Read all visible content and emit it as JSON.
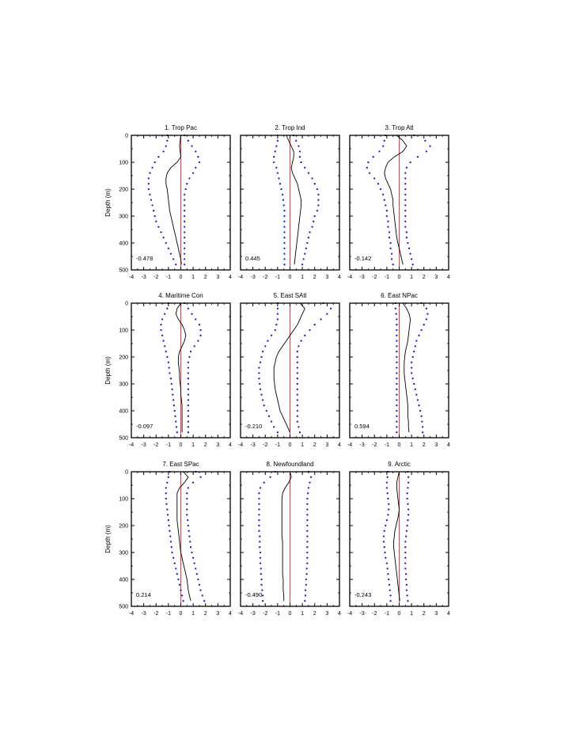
{
  "figure": {
    "ylabel": "Depth (m)",
    "xticks": [
      "-4",
      "-3",
      "-2",
      "-1",
      "0",
      "1",
      "2",
      "3",
      "4"
    ],
    "yticks": [
      "0",
      "100",
      "200",
      "300",
      "400",
      "500"
    ],
    "colors": {
      "profile": "#000000",
      "bounds": "#1a1adf",
      "zero_line": "#ff2020"
    }
  },
  "chart_data": [
    {
      "type": "line",
      "title": "1. Trop Pac",
      "corr": "-0.478",
      "xlim": [
        -4,
        4
      ],
      "ylim": [
        0,
        500
      ],
      "ylabel": "Depth (m)",
      "depth": [
        0,
        20,
        40,
        60,
        80,
        100,
        120,
        140,
        160,
        180,
        200,
        220,
        240,
        260,
        280,
        300,
        320,
        340,
        360,
        380,
        400,
        420,
        440,
        460,
        480
      ],
      "series": [
        {
          "role": "mean",
          "values": [
            0.0,
            -0.05,
            -0.1,
            -0.05,
            0.0,
            -0.3,
            -0.8,
            -1.1,
            -1.2,
            -1.2,
            -1.1,
            -1.05,
            -1.0,
            -0.95,
            -0.9,
            -0.8,
            -0.7,
            -0.6,
            -0.5,
            -0.4,
            -0.3,
            -0.2,
            -0.1,
            0.0,
            0.05
          ]
        },
        {
          "role": "lower",
          "values": [
            -1.1,
            -1.1,
            -1.2,
            -1.4,
            -1.8,
            -2.1,
            -2.3,
            -2.5,
            -2.6,
            -2.6,
            -2.6,
            -2.5,
            -2.4,
            -2.3,
            -2.2,
            -2.1,
            -2.0,
            -1.8,
            -1.6,
            -1.4,
            -1.2,
            -1.0,
            -0.8,
            -0.6,
            -0.4
          ]
        },
        {
          "role": "upper",
          "values": [
            0.3,
            0.6,
            0.9,
            1.2,
            1.4,
            1.5,
            1.2,
            1.0,
            0.7,
            0.5,
            0.4,
            0.3,
            0.3,
            0.3,
            0.3,
            0.3,
            0.3,
            0.3,
            0.3,
            0.3,
            0.3,
            0.3,
            0.3,
            0.3,
            0.3
          ]
        }
      ]
    },
    {
      "type": "line",
      "title": "2. Trop Ind",
      "corr": "0.445",
      "xlim": [
        -4,
        4
      ],
      "ylim": [
        0,
        500
      ],
      "depth": [
        0,
        20,
        40,
        60,
        80,
        100,
        120,
        140,
        160,
        180,
        200,
        220,
        240,
        260,
        280,
        300,
        320,
        340,
        360,
        380,
        400,
        420,
        440,
        460,
        480
      ],
      "series": [
        {
          "role": "mean",
          "values": [
            -0.3,
            -0.1,
            0.1,
            0.3,
            0.3,
            0.2,
            0.1,
            0.2,
            0.4,
            0.6,
            0.7,
            0.8,
            0.9,
            0.9,
            0.85,
            0.8,
            0.75,
            0.7,
            0.65,
            0.6,
            0.55,
            0.5,
            0.45,
            0.4,
            0.35
          ]
        },
        {
          "role": "lower",
          "values": [
            -1.0,
            -1.0,
            -1.1,
            -1.2,
            -1.3,
            -1.3,
            -1.1,
            -1.0,
            -0.9,
            -0.8,
            -0.7,
            -0.6,
            -0.55,
            -0.5,
            -0.45,
            -0.45,
            -0.45,
            -0.45,
            -0.45,
            -0.45,
            -0.45,
            -0.45,
            -0.45,
            -0.45,
            -0.45
          ]
        },
        {
          "role": "upper",
          "values": [
            0.3,
            0.5,
            0.7,
            0.8,
            0.8,
            0.9,
            1.2,
            1.5,
            1.8,
            2.0,
            2.2,
            2.3,
            2.3,
            2.3,
            2.2,
            2.0,
            1.9,
            1.8,
            1.6,
            1.5,
            1.4,
            1.3,
            1.2,
            1.1,
            1.0
          ]
        }
      ]
    },
    {
      "type": "line",
      "title": "3. Trop Atl",
      "corr": "-0.142",
      "xlim": [
        -4,
        4
      ],
      "ylim": [
        0,
        500
      ],
      "depth": [
        0,
        20,
        40,
        60,
        80,
        100,
        120,
        140,
        160,
        180,
        200,
        220,
        240,
        260,
        280,
        300,
        320,
        340,
        360,
        380,
        400,
        420,
        440,
        460,
        480
      ],
      "series": [
        {
          "role": "mean",
          "values": [
            -0.2,
            0.3,
            0.6,
            0.3,
            -0.4,
            -0.9,
            -1.1,
            -1.2,
            -1.1,
            -0.9,
            -0.7,
            -0.6,
            -0.5,
            -0.5,
            -0.45,
            -0.4,
            -0.35,
            -0.3,
            -0.25,
            -0.2,
            -0.1,
            0.0,
            0.1,
            0.2,
            0.3
          ]
        },
        {
          "role": "lower",
          "values": [
            -1.1,
            -1.2,
            -1.3,
            -1.6,
            -2.1,
            -2.5,
            -2.6,
            -2.4,
            -2.0,
            -1.7,
            -1.5,
            -1.3,
            -1.2,
            -1.1,
            -1.0,
            -1.0,
            -0.9,
            -0.9,
            -0.8,
            -0.8,
            -0.7,
            -0.7,
            -0.6,
            -0.6,
            -0.5
          ]
        },
        {
          "role": "upper",
          "values": [
            1.2,
            2.1,
            2.5,
            2.2,
            1.5,
            0.9,
            0.6,
            0.5,
            0.5,
            0.5,
            0.5,
            0.5,
            0.5,
            0.5,
            0.5,
            0.5,
            0.5,
            0.5,
            0.6,
            0.6,
            0.7,
            0.8,
            0.9,
            1.0,
            1.1
          ]
        }
      ]
    },
    {
      "type": "line",
      "title": "4. Maritime Con",
      "corr": "-0.097",
      "xlim": [
        -4,
        4
      ],
      "ylim": [
        0,
        500
      ],
      "ylabel": "Depth (m)",
      "depth": [
        0,
        20,
        40,
        60,
        80,
        100,
        120,
        140,
        160,
        180,
        200,
        220,
        240,
        260,
        280,
        300,
        320,
        340,
        360,
        380,
        400,
        420,
        440,
        460,
        480
      ],
      "series": [
        {
          "role": "mean",
          "values": [
            0.0,
            -0.3,
            -0.4,
            -0.2,
            0.1,
            0.3,
            0.4,
            0.3,
            0.1,
            -0.1,
            -0.2,
            -0.2,
            -0.15,
            -0.1,
            -0.1,
            -0.05,
            0.0,
            0.0,
            0.05,
            0.1,
            0.1,
            0.1,
            0.1,
            0.1,
            0.1
          ]
        },
        {
          "role": "lower",
          "values": [
            -1.0,
            -1.1,
            -1.3,
            -1.5,
            -1.6,
            -1.6,
            -1.5,
            -1.4,
            -1.3,
            -1.2,
            -1.1,
            -1.0,
            -0.95,
            -0.9,
            -0.8,
            -0.75,
            -0.7,
            -0.65,
            -0.6,
            -0.55,
            -0.5,
            -0.45,
            -0.4,
            -0.35,
            -0.3
          ]
        },
        {
          "role": "upper",
          "values": [
            0.3,
            0.6,
            0.9,
            1.2,
            1.5,
            1.6,
            1.6,
            1.4,
            1.1,
            0.8,
            0.7,
            0.6,
            0.6,
            0.6,
            0.6,
            0.6,
            0.6,
            0.6,
            0.6,
            0.6,
            0.6,
            0.6,
            0.6,
            0.6,
            0.6
          ]
        }
      ]
    },
    {
      "type": "line",
      "title": "5. East SAtl",
      "corr": "-0.210",
      "xlim": [
        -4,
        4
      ],
      "ylim": [
        0,
        500
      ],
      "depth": [
        0,
        20,
        40,
        60,
        80,
        100,
        120,
        140,
        160,
        180,
        200,
        220,
        240,
        260,
        280,
        300,
        320,
        340,
        360,
        380,
        400,
        420,
        440,
        460,
        480
      ],
      "series": [
        {
          "role": "mean",
          "values": [
            0.8,
            1.2,
            1.0,
            0.8,
            0.6,
            0.3,
            0.0,
            -0.3,
            -0.6,
            -0.9,
            -1.1,
            -1.2,
            -1.3,
            -1.3,
            -1.3,
            -1.25,
            -1.2,
            -1.1,
            -1.0,
            -0.9,
            -0.8,
            -0.6,
            -0.4,
            -0.2,
            0.0
          ]
        },
        {
          "role": "lower",
          "values": [
            -1.0,
            -1.0,
            -1.0,
            -1.0,
            -1.1,
            -1.2,
            -1.5,
            -1.8,
            -2.0,
            -2.2,
            -2.3,
            -2.4,
            -2.5,
            -2.5,
            -2.5,
            -2.45,
            -2.4,
            -2.3,
            -2.2,
            -2.1,
            -1.9,
            -1.7,
            -1.5,
            -1.3,
            -1.0
          ]
        },
        {
          "role": "upper",
          "values": [
            2.7,
            3.3,
            3.0,
            2.5,
            2.0,
            1.6,
            1.2,
            0.9,
            0.7,
            0.6,
            0.6,
            0.6,
            0.6,
            0.6,
            0.6,
            0.6,
            0.6,
            0.6,
            0.6,
            0.6,
            0.6,
            0.6,
            0.6,
            0.7,
            0.8
          ]
        }
      ]
    },
    {
      "type": "line",
      "title": "6. East NPac",
      "corr": "0.594",
      "xlim": [
        -4,
        4
      ],
      "ylim": [
        0,
        500
      ],
      "depth": [
        0,
        20,
        40,
        60,
        80,
        100,
        120,
        140,
        160,
        180,
        200,
        220,
        240,
        260,
        280,
        300,
        320,
        340,
        360,
        380,
        400,
        420,
        440,
        460,
        480
      ],
      "series": [
        {
          "role": "mean",
          "values": [
            0.3,
            0.6,
            0.8,
            0.9,
            0.85,
            0.8,
            0.75,
            0.7,
            0.6,
            0.5,
            0.45,
            0.4,
            0.4,
            0.4,
            0.45,
            0.5,
            0.55,
            0.6,
            0.65,
            0.7,
            0.7,
            0.7,
            0.75,
            0.75,
            0.8
          ]
        },
        {
          "role": "lower",
          "values": [
            -0.3,
            -0.3,
            -0.25,
            -0.2,
            -0.2,
            -0.2,
            -0.2,
            -0.2,
            -0.2,
            -0.2,
            -0.2,
            -0.2,
            -0.2,
            -0.2,
            -0.2,
            -0.2,
            -0.2,
            -0.2,
            -0.2,
            -0.2,
            -0.2,
            -0.2,
            -0.2,
            -0.2,
            -0.2
          ]
        },
        {
          "role": "upper",
          "values": [
            1.8,
            2.2,
            2.3,
            2.2,
            2.0,
            1.8,
            1.6,
            1.4,
            1.3,
            1.2,
            1.1,
            1.0,
            1.0,
            1.0,
            1.1,
            1.2,
            1.3,
            1.4,
            1.5,
            1.6,
            1.7,
            1.8,
            1.85,
            1.9,
            1.9
          ]
        }
      ]
    },
    {
      "type": "line",
      "title": "7. East SPac",
      "corr": "0.214",
      "xlim": [
        -4,
        4
      ],
      "ylim": [
        0,
        500
      ],
      "ylabel": "Depth (m)",
      "depth": [
        0,
        20,
        40,
        60,
        80,
        100,
        120,
        140,
        160,
        180,
        200,
        220,
        240,
        260,
        280,
        300,
        320,
        340,
        360,
        380,
        400,
        420,
        440,
        460,
        480
      ],
      "series": [
        {
          "role": "mean",
          "values": [
            0.2,
            0.6,
            0.3,
            -0.1,
            -0.3,
            -0.3,
            -0.3,
            -0.3,
            -0.3,
            -0.3,
            -0.25,
            -0.2,
            -0.15,
            -0.1,
            -0.05,
            0.0,
            0.1,
            0.2,
            0.3,
            0.4,
            0.5,
            0.55,
            0.6,
            0.7,
            0.8
          ]
        },
        {
          "role": "lower",
          "values": [
            -0.9,
            -1.0,
            -1.1,
            -1.2,
            -1.2,
            -1.2,
            -1.15,
            -1.1,
            -1.05,
            -1.0,
            -0.95,
            -0.9,
            -0.85,
            -0.8,
            -0.75,
            -0.7,
            -0.6,
            -0.5,
            -0.4,
            -0.3,
            -0.2,
            -0.1,
            0.0,
            0.1,
            0.2
          ]
        },
        {
          "role": "upper",
          "values": [
            1.2,
            1.6,
            1.0,
            0.6,
            0.5,
            0.5,
            0.5,
            0.5,
            0.5,
            0.55,
            0.6,
            0.65,
            0.7,
            0.75,
            0.8,
            0.9,
            1.0,
            1.1,
            1.2,
            1.3,
            1.4,
            1.5,
            1.6,
            1.75,
            1.9
          ]
        }
      ]
    },
    {
      "type": "line",
      "title": "8. Newfoundland",
      "corr": "-0.490",
      "xlim": [
        -4,
        4
      ],
      "ylim": [
        0,
        500
      ],
      "depth": [
        0,
        20,
        40,
        60,
        80,
        100,
        120,
        140,
        160,
        180,
        200,
        220,
        240,
        260,
        280,
        300,
        320,
        340,
        360,
        380,
        400,
        420,
        440,
        460,
        480
      ],
      "series": [
        {
          "role": "mean",
          "values": [
            0.0,
            0.1,
            -0.1,
            -0.4,
            -0.6,
            -0.65,
            -0.65,
            -0.65,
            -0.65,
            -0.65,
            -0.65,
            -0.65,
            -0.65,
            -0.6,
            -0.6,
            -0.6,
            -0.6,
            -0.6,
            -0.6,
            -0.6,
            -0.55,
            -0.55,
            -0.55,
            -0.5,
            -0.5
          ]
        },
        {
          "role": "lower",
          "values": [
            -1.2,
            -1.6,
            -2.1,
            -2.4,
            -2.5,
            -2.5,
            -2.5,
            -2.5,
            -2.5,
            -2.5,
            -2.5,
            -2.5,
            -2.45,
            -2.45,
            -2.45,
            -2.4,
            -2.4,
            -2.4,
            -2.35,
            -2.35,
            -2.3,
            -2.3,
            -2.25,
            -2.2,
            -2.2
          ]
        },
        {
          "role": "upper",
          "values": [
            1.5,
            1.7,
            1.6,
            1.5,
            1.45,
            1.4,
            1.4,
            1.4,
            1.4,
            1.4,
            1.4,
            1.4,
            1.4,
            1.4,
            1.4,
            1.4,
            1.4,
            1.4,
            1.35,
            1.35,
            1.3,
            1.3,
            1.25,
            1.25,
            1.2
          ]
        }
      ]
    },
    {
      "type": "line",
      "title": "9. Arctic",
      "corr": "-0.243",
      "xlim": [
        -4,
        4
      ],
      "ylim": [
        0,
        500
      ],
      "depth": [
        0,
        20,
        40,
        60,
        80,
        100,
        120,
        140,
        160,
        180,
        200,
        220,
        240,
        260,
        280,
        300,
        320,
        340,
        360,
        380,
        400,
        420,
        440,
        460,
        480
      ],
      "series": [
        {
          "role": "mean",
          "values": [
            0.0,
            -0.1,
            -0.2,
            -0.2,
            -0.15,
            -0.1,
            -0.05,
            0.0,
            -0.05,
            -0.15,
            -0.25,
            -0.35,
            -0.4,
            -0.45,
            -0.45,
            -0.4,
            -0.35,
            -0.3,
            -0.25,
            -0.2,
            -0.15,
            -0.1,
            -0.05,
            0.0,
            0.05
          ]
        },
        {
          "role": "lower",
          "values": [
            -0.9,
            -0.95,
            -1.0,
            -1.0,
            -0.95,
            -0.9,
            -0.85,
            -0.85,
            -0.9,
            -1.0,
            -1.1,
            -1.2,
            -1.25,
            -1.25,
            -1.2,
            -1.15,
            -1.1,
            -1.0,
            -0.95,
            -0.9,
            -0.85,
            -0.8,
            -0.75,
            -0.7,
            -0.7
          ]
        },
        {
          "role": "upper",
          "values": [
            0.7,
            0.75,
            0.75,
            0.7,
            0.65,
            0.65,
            0.7,
            0.75,
            0.75,
            0.7,
            0.65,
            0.6,
            0.55,
            0.5,
            0.5,
            0.5,
            0.5,
            0.5,
            0.5,
            0.55,
            0.55,
            0.6,
            0.6,
            0.65,
            0.7
          ]
        }
      ]
    }
  ]
}
